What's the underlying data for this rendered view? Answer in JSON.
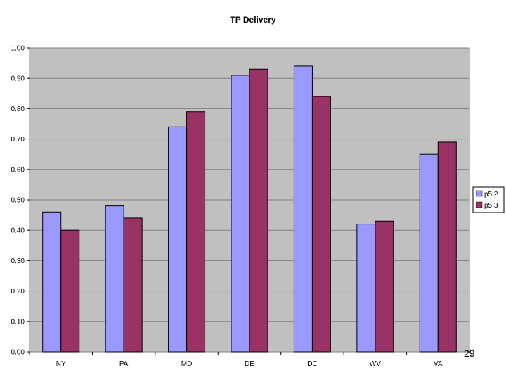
{
  "chart_data": {
    "type": "bar",
    "title": "TP Delivery",
    "xlabel": "",
    "ylabel": "",
    "ylim": [
      0,
      1.0
    ],
    "ytick_step": 0.1,
    "ytick_labels": [
      "0.00",
      "0.10",
      "0.20",
      "0.30",
      "0.40",
      "0.50",
      "0.60",
      "0.70",
      "0.80",
      "0.90",
      "1.00"
    ],
    "categories": [
      "NY",
      "PA",
      "MD",
      "DE",
      "DC",
      "WV",
      "VA"
    ],
    "series": [
      {
        "name": "p5.2",
        "color": "#9999ff",
        "values": [
          0.46,
          0.48,
          0.74,
          0.91,
          0.94,
          0.42,
          0.65
        ]
      },
      {
        "name": "p5.3",
        "color": "#993366",
        "values": [
          0.4,
          0.44,
          0.79,
          0.93,
          0.84,
          0.43,
          0.69
        ]
      }
    ],
    "grid": true,
    "plot_background": "#c0c0c0",
    "legend_position": "right"
  },
  "page_number": "29"
}
